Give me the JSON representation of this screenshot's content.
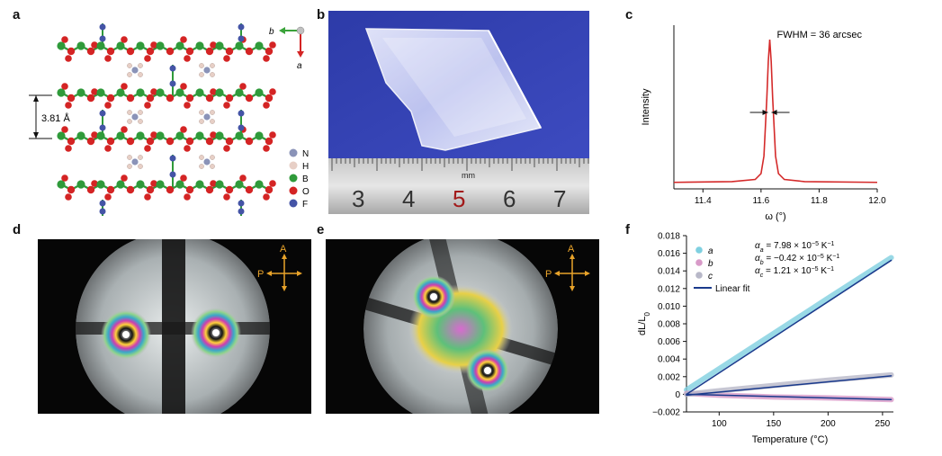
{
  "panels": {
    "a": {
      "letter": "a",
      "layer_spacing": "3.81 Å",
      "axis_b": "b",
      "axis_a": "a",
      "legend": [
        {
          "label": "N",
          "color": "#8a93b8"
        },
        {
          "label": "H",
          "color": "#e7cfc6"
        },
        {
          "label": "B",
          "color": "#2f9a3a"
        },
        {
          "label": "O",
          "color": "#d42424"
        },
        {
          "label": "F",
          "color": "#4454a6"
        }
      ]
    },
    "b": {
      "letter": "b",
      "ruler_numbers": [
        "3",
        "4",
        "5",
        "6",
        "7"
      ],
      "ruler_unit": "mm"
    },
    "c": {
      "letter": "c",
      "annotation": "FWHM = 36 arcsec",
      "ylabel": "Intensity"
    },
    "d": {
      "letter": "d",
      "label_a": "A",
      "label_p": "P"
    },
    "e": {
      "letter": "e",
      "label_a": "A",
      "label_p": "P"
    },
    "f": {
      "letter": "f"
    }
  },
  "chart_data": [
    {
      "id": "c",
      "type": "line",
      "title": "",
      "xlabel": "ω (°)",
      "ylabel": "Intensity",
      "xlim": [
        11.3,
        12.0
      ],
      "xticks": [
        11.4,
        11.6,
        11.8,
        12.0
      ],
      "annotation": "FWHM = 36 arcsec",
      "series": [
        {
          "color": "#d42a2a",
          "x": [
            11.3,
            11.5,
            11.58,
            11.6,
            11.61,
            11.62,
            11.625,
            11.63,
            11.635,
            11.64,
            11.65,
            11.66,
            11.68,
            11.75,
            12.0
          ],
          "y": [
            0.02,
            0.025,
            0.04,
            0.08,
            0.2,
            0.6,
            0.85,
            1.0,
            0.85,
            0.6,
            0.2,
            0.08,
            0.04,
            0.025,
            0.02
          ]
        }
      ]
    },
    {
      "id": "f",
      "type": "line",
      "title": "",
      "xlabel": "Temperature (°C)",
      "ylabel": "dL/L0",
      "xlim": [
        70,
        260
      ],
      "ylim": [
        -0.002,
        0.018
      ],
      "xticks": [
        100,
        150,
        200,
        250
      ],
      "yticks": [
        -0.002,
        0,
        0.002,
        0.004,
        0.006,
        0.008,
        0.01,
        0.012,
        0.014,
        0.016,
        0.018
      ],
      "legend_position": "top-left",
      "coefficients": [
        {
          "prefix": "α",
          "sub": "a",
          "text": " = 7.98 × 10",
          "exp": "−5",
          "unit": " K",
          "unit_exp": "−1"
        },
        {
          "prefix": "α",
          "sub": "b",
          "text": " = −0.42 × 10",
          "exp": "−5",
          "unit": " K",
          "unit_exp": "−1"
        },
        {
          "prefix": "α",
          "sub": "c",
          "text": " = 1.21 × 10",
          "exp": "−5",
          "unit": " K",
          "unit_exp": "−1"
        }
      ],
      "series": [
        {
          "name": "a",
          "color": "#7fd0e0",
          "x": [
            70,
            100,
            150,
            200,
            258
          ],
          "y": [
            0.0005,
            0.0029,
            0.0069,
            0.0109,
            0.0155
          ]
        },
        {
          "name": "b",
          "color": "#d89ac8",
          "x": [
            70,
            100,
            150,
            200,
            258
          ],
          "y": [
            0.0001,
            -0.0001,
            -0.0003,
            -0.0004,
            -0.0006
          ]
        },
        {
          "name": "c",
          "color": "#b8b8c8",
          "x": [
            70,
            100,
            150,
            200,
            258
          ],
          "y": [
            0.0,
            0.0004,
            0.001,
            0.0016,
            0.0022
          ]
        },
        {
          "name": "Linear fit",
          "color": "#1a3a8c",
          "x": [
            70,
            258
          ],
          "y": [
            0.0,
            0.0152
          ]
        },
        {
          "color": "#1a3a8c",
          "x": [
            70,
            258
          ],
          "y": [
            0.0,
            -0.0006
          ]
        },
        {
          "color": "#1a3a8c",
          "x": [
            70,
            258
          ],
          "y": [
            -0.0001,
            0.0021
          ]
        }
      ]
    }
  ]
}
